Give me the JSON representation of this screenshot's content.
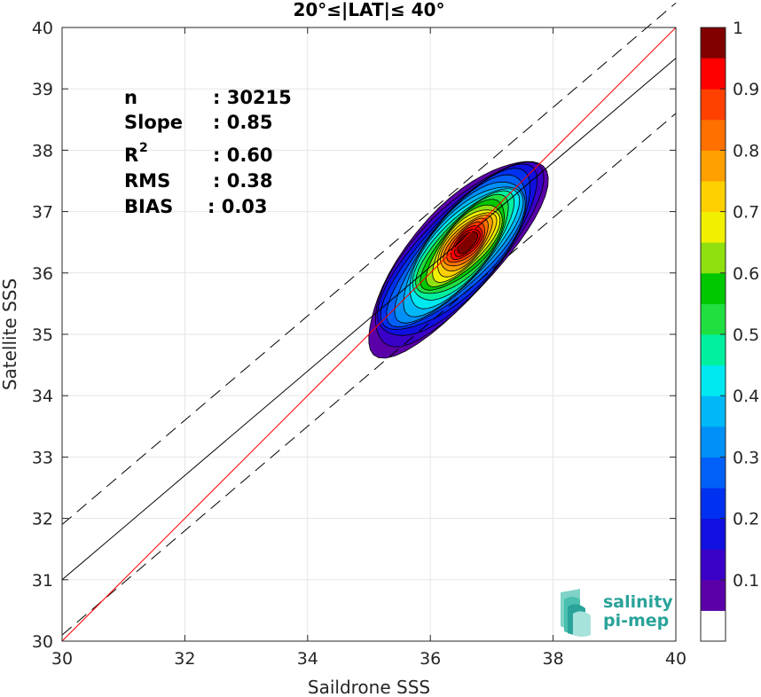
{
  "chart_data": {
    "type": "density-scatter",
    "title": "20°≤|LAT|≤ 40°",
    "xlabel": "Saildrone SSS",
    "ylabel": "Satellite SSS",
    "xlim": [
      30,
      40
    ],
    "ylim": [
      30,
      40
    ],
    "xticks": [
      "30",
      "32",
      "34",
      "36",
      "38",
      "40"
    ],
    "yticks": [
      "30",
      "31",
      "32",
      "33",
      "34",
      "35",
      "36",
      "37",
      "38",
      "39",
      "40"
    ],
    "grid": true,
    "stats": [
      {
        "label": "n",
        "value": ": 30215"
      },
      {
        "label": "Slope",
        "value": ": 0.85"
      },
      {
        "label": "R",
        "sup": "2",
        "value": ": 0.60"
      },
      {
        "label": "RMS",
        "value": ": 0.38"
      },
      {
        "label": "BIAS",
        "value": ": 0.03"
      }
    ],
    "lines": {
      "identity": {
        "x": [
          30,
          40
        ],
        "y": [
          30,
          40
        ],
        "color": "#ff0000"
      },
      "fit": {
        "x": [
          30,
          40
        ],
        "y": [
          31,
          39.5
        ],
        "color": "#000000"
      },
      "fit_upper": {
        "x": [
          30,
          40
        ],
        "y": [
          31.9,
          40.4
        ],
        "color": "#000000",
        "style": "dashed"
      },
      "fit_lower": {
        "x": [
          30,
          40
        ],
        "y": [
          30.1,
          38.6
        ],
        "color": "#000000",
        "style": "dashed"
      }
    },
    "density": {
      "center": [
        36.6,
        36.5
      ],
      "levels": [
        0.05,
        0.1,
        0.15,
        0.2,
        0.25,
        0.3,
        0.35,
        0.4,
        0.45,
        0.5,
        0.55,
        0.6,
        0.65,
        0.7,
        0.75,
        0.8,
        0.85,
        0.9,
        0.95,
        1.0
      ],
      "colors": [
        "#5a00a8",
        "#3a00c8",
        "#1010e0",
        "#0030f0",
        "#0060f8",
        "#0090f8",
        "#00b8f8",
        "#00e8f0",
        "#00f0a0",
        "#20e040",
        "#00c800",
        "#90e010",
        "#f0f000",
        "#ffd000",
        "#ffa000",
        "#ff7000",
        "#ff4000",
        "#ff0000",
        "#d00000",
        "#800000"
      ]
    },
    "colorbar": {
      "ticks": [
        "0.1",
        "0.2",
        "0.3",
        "0.4",
        "0.5",
        "0.6",
        "0.7",
        "0.8",
        "0.9",
        "1"
      ],
      "range": [
        0,
        1
      ]
    }
  },
  "logo": {
    "line1": "salinity",
    "line2": "pi-mep"
  }
}
